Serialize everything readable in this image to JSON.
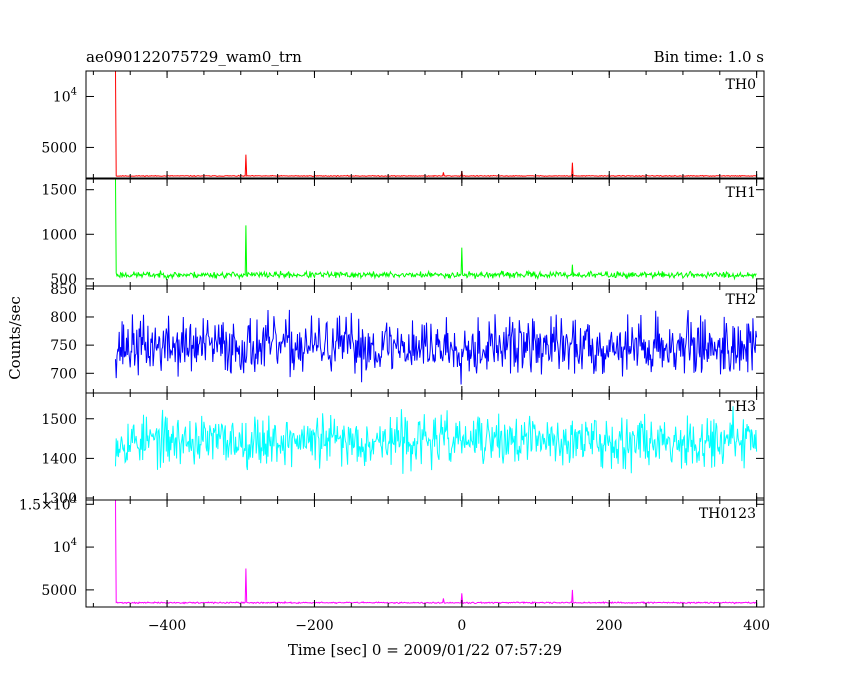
{
  "chart_data": {
    "type": "line",
    "title_left": "ae090122075729_wam0_trn",
    "title_right": "Bin time: 1.0 s",
    "xlabel": "Time [sec] 0 = 2009/01/22 07:57:29",
    "ylabel": "Counts/sec",
    "xlim": [
      -510,
      410
    ],
    "x_range": [
      -470,
      400
    ],
    "x_ticks": [
      {
        "value": -400,
        "label": "−400"
      },
      {
        "value": -200,
        "label": "−200"
      },
      {
        "value": 0,
        "label": "0"
      },
      {
        "value": 200,
        "label": "200"
      },
      {
        "value": 400,
        "label": "400"
      }
    ],
    "panels": [
      {
        "name": "TH0",
        "color": "#ff0000",
        "ylim": [
          2000,
          12500
        ],
        "baseline": 2200,
        "noise": 40,
        "seed": 11,
        "y_ticks": [
          {
            "value": 5000,
            "label": "5000"
          },
          {
            "value": 10000,
            "label": "10",
            "sup": "4"
          }
        ],
        "spikes": [
          {
            "x": -470,
            "y": 12500
          },
          {
            "x": -293,
            "y": 4300
          },
          {
            "x": -25,
            "y": 2550
          },
          {
            "x": 0,
            "y": 2700
          },
          {
            "x": 150,
            "y": 3500
          }
        ]
      },
      {
        "name": "TH1",
        "color": "#00ff00",
        "ylim": [
          420,
          1620
        ],
        "baseline": 545,
        "noise": 35,
        "seed": 23,
        "y_ticks": [
          {
            "value": 500,
            "label": "500"
          },
          {
            "value": 1000,
            "label": "1000"
          },
          {
            "value": 1500,
            "label": "1500"
          }
        ],
        "spikes": [
          {
            "x": -470,
            "y": 1620
          },
          {
            "x": -293,
            "y": 1100
          },
          {
            "x": 0,
            "y": 850
          },
          {
            "x": 150,
            "y": 660
          }
        ]
      },
      {
        "name": "TH2",
        "color": "#0000ff",
        "ylim": [
          665,
          855
        ],
        "baseline": 748,
        "noise": 50,
        "seed": 37,
        "y_ticks": [
          {
            "value": 700,
            "label": "700"
          },
          {
            "value": 750,
            "label": "750"
          },
          {
            "value": 800,
            "label": "800"
          },
          {
            "value": 850,
            "label": "850"
          }
        ],
        "spikes": []
      },
      {
        "name": "TH3",
        "color": "#00ffff",
        "ylim": [
          1295,
          1565
        ],
        "baseline": 1445,
        "noise": 62,
        "seed": 53,
        "y_ticks": [
          {
            "value": 1300,
            "label": "1300"
          },
          {
            "value": 1400,
            "label": "1400"
          },
          {
            "value": 1500,
            "label": "1500"
          }
        ],
        "spikes": []
      },
      {
        "name": "TH0123",
        "color": "#ff00ff",
        "ylim": [
          3000,
          15500
        ],
        "baseline": 3500,
        "noise": 80,
        "seed": 71,
        "y_ticks": [
          {
            "value": 5000,
            "label": "5000"
          },
          {
            "value": 10000,
            "label": "10",
            "sup": "4"
          },
          {
            "value": 15000,
            "label": "1.5×10",
            "sup": "4"
          }
        ],
        "spikes": [
          {
            "x": -470,
            "y": 15500
          },
          {
            "x": -293,
            "y": 7500
          },
          {
            "x": -25,
            "y": 4000
          },
          {
            "x": 0,
            "y": 4600
          },
          {
            "x": 150,
            "y": 5000
          }
        ]
      }
    ]
  }
}
